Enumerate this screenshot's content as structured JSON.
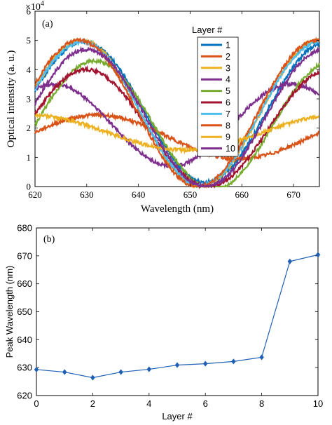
{
  "chart_data": [
    {
      "panel_label": "(a)",
      "type": "line",
      "xlabel": "Wavelength (nm)",
      "ylabel": "Optical intensity (a. u.)",
      "y_exponent_label": "×10",
      "y_exponent": "4",
      "xlim": [
        620,
        675
      ],
      "ylim": [
        0,
        6
      ],
      "x_ticks": [
        "620",
        "630",
        "640",
        "650",
        "660",
        "670"
      ],
      "y_ticks": [
        "0",
        "1",
        "2",
        "3",
        "4",
        "5",
        "6"
      ],
      "grid": false,
      "legend_title": "Layer #",
      "legend_position": "top-right",
      "series": [
        {
          "name": "1",
          "color": "#0072BD",
          "peak": 629.5,
          "amplitude": 2.4,
          "offset": 2.55,
          "period": 47,
          "y_max": 4.95
        },
        {
          "name": "2",
          "color": "#D95319",
          "peak": 632.0,
          "amplitude": 0.75,
          "offset": 1.7,
          "period": 55,
          "y_max": 2.45
        },
        {
          "name": "3",
          "color": "#EDB120",
          "peak": 629.0,
          "amplitude": 2.5,
          "offset": 2.5,
          "period": 46,
          "y_max": 5.0
        },
        {
          "name": "4",
          "color": "#7E2F8E",
          "peak": 623.5,
          "amplitude": 1.4,
          "offset": 2.1,
          "period": 46,
          "y_max": 3.5
        },
        {
          "name": "5",
          "color": "#77AC30",
          "peak": 631.5,
          "amplitude": 2.2,
          "offset": 2.1,
          "period": 46,
          "y_max": 4.3
        },
        {
          "name": "6",
          "color": "#A2142F",
          "peak": 630.0,
          "amplitude": 2.0,
          "offset": 2.0,
          "period": 47,
          "y_max": 4.0
        },
        {
          "name": "7",
          "color": "#4DBEEE",
          "peak": 629.0,
          "amplitude": 2.45,
          "offset": 2.5,
          "period": 46,
          "y_max": 4.95
        },
        {
          "name": "8",
          "color": "#D95319",
          "peak": 628.5,
          "amplitude": 2.5,
          "offset": 2.5,
          "period": 46,
          "y_max": 5.0
        },
        {
          "name": "9",
          "color": "#EDB120",
          "peak": 619.0,
          "amplitude": 0.6,
          "offset": 1.85,
          "period": 60,
          "y_max": 2.45
        },
        {
          "name": "10",
          "color": "#7E2F8E",
          "peak": 630.0,
          "amplitude": 2.35,
          "offset": 2.35,
          "period": 46,
          "y_max": 4.7
        }
      ]
    },
    {
      "panel_label": "(b)",
      "type": "line",
      "xlabel": "Layer #",
      "ylabel": "Peak Wavelength (nm)",
      "xlim": [
        0,
        10
      ],
      "ylim": [
        620,
        680
      ],
      "x_ticks": [
        "0",
        "2",
        "4",
        "6",
        "8",
        "10"
      ],
      "y_ticks": [
        "620",
        "630",
        "640",
        "650",
        "660",
        "670",
        "680"
      ],
      "grid": false,
      "color": "#1F5FB4",
      "x": [
        0,
        1,
        2,
        3,
        4,
        5,
        6,
        7,
        8,
        9,
        10
      ],
      "y": [
        629.3,
        628.4,
        626.4,
        628.4,
        629.4,
        630.9,
        631.4,
        632.2,
        633.7,
        668.0,
        670.4
      ]
    }
  ]
}
